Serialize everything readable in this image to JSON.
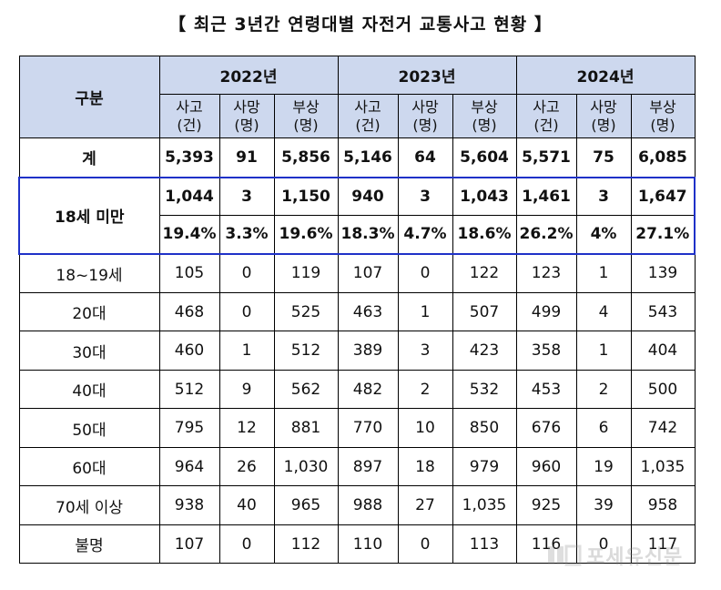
{
  "title": "【 최근 3년간 연령대별 자전거 교통사고 현황 】",
  "header": {
    "category_label": "구분",
    "years": [
      "2022년",
      "2023년",
      "2024년"
    ],
    "units": [
      "사고\n(건)",
      "사망\n(명)",
      "부상\n(명)"
    ]
  },
  "rows": {
    "total": {
      "label": "계",
      "values": [
        "5,393",
        "91",
        "5,856",
        "5,146",
        "64",
        "5,604",
        "5,571",
        "75",
        "6,085"
      ]
    },
    "under18": {
      "label": "18세 미만",
      "values": [
        "1,044",
        "3",
        "1,150",
        "940",
        "3",
        "1,043",
        "1,461",
        "3",
        "1,647"
      ],
      "shares": [
        "19.4%",
        "3.3%",
        "19.6%",
        "18.3%",
        "4.7%",
        "18.6%",
        "26.2%",
        "4%",
        "27.1%"
      ]
    },
    "age18_19": {
      "label": "18~19세",
      "values": [
        "105",
        "0",
        "119",
        "107",
        "0",
        "122",
        "123",
        "1",
        "139"
      ]
    },
    "age20s": {
      "label": "20대",
      "values": [
        "468",
        "0",
        "525",
        "463",
        "1",
        "507",
        "499",
        "4",
        "543"
      ]
    },
    "age30s": {
      "label": "30대",
      "values": [
        "460",
        "1",
        "512",
        "389",
        "3",
        "423",
        "358",
        "1",
        "404"
      ]
    },
    "age40s": {
      "label": "40대",
      "values": [
        "512",
        "9",
        "562",
        "482",
        "2",
        "532",
        "453",
        "2",
        "500"
      ]
    },
    "age50s": {
      "label": "50대",
      "values": [
        "795",
        "12",
        "881",
        "770",
        "10",
        "850",
        "676",
        "6",
        "742"
      ]
    },
    "age60s": {
      "label": "60대",
      "values": [
        "964",
        "26",
        "1,030",
        "897",
        "18",
        "979",
        "960",
        "19",
        "1,035"
      ]
    },
    "age70plus": {
      "label": "70세 이상",
      "values": [
        "938",
        "40",
        "965",
        "988",
        "27",
        "1,035",
        "925",
        "39",
        "958"
      ]
    },
    "unknown": {
      "label": "불명",
      "values": [
        "107",
        "0",
        "112",
        "110",
        "0",
        "113",
        "116",
        "0",
        "117"
      ]
    }
  },
  "watermark": {
    "text": "포세유신문",
    "icon": "newspaper-logo-icon"
  },
  "colors": {
    "header_bg": "#cdd8ee",
    "highlight_border": "#1f31c8"
  }
}
